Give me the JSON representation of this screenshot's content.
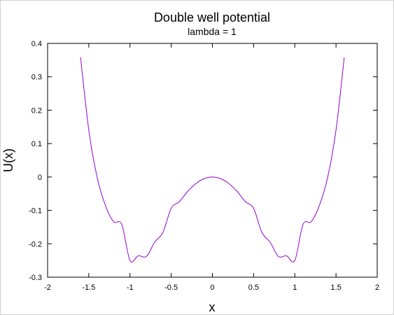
{
  "chart_data": {
    "type": "line",
    "title": "Double well potential",
    "subtitle": "lambda = 1",
    "xlabel": "x",
    "ylabel": "U(x)",
    "xlim": [
      -2,
      2
    ],
    "ylim": [
      -0.3,
      0.4
    ],
    "x_ticks": [
      -2,
      -1.5,
      -1,
      -0.5,
      0,
      0.5,
      1,
      1.5,
      2
    ],
    "x_tick_labels": [
      "-2",
      "-1.5",
      "-1",
      "-0.5",
      "0",
      "0.5",
      "1",
      "1.5",
      "2"
    ],
    "y_ticks": [
      -0.3,
      -0.2,
      -0.1,
      0,
      0.1,
      0.2,
      0.3,
      0.4
    ],
    "y_tick_labels": [
      "-0.3",
      "-0.2",
      "-0.1",
      "0",
      "0.1",
      "0.2",
      "0.3",
      "0.4"
    ],
    "grid": false,
    "series": [
      {
        "color": "#9400d3",
        "x": [
          -1.6,
          -1.5,
          -1.4,
          -1.3,
          -1.2,
          -1.1,
          -1.0,
          -0.9,
          -0.8,
          -0.7,
          -0.6,
          -0.5,
          -0.4,
          -0.3,
          -0.2,
          -0.1,
          0.0,
          0.1,
          0.2,
          0.3,
          0.4,
          0.5,
          0.6,
          0.7,
          0.8,
          0.9,
          1.0,
          1.1,
          1.2,
          1.3,
          1.4,
          1.5,
          1.6
        ],
        "y": [
          0.3584,
          0.1406,
          0.0004,
          -0.084,
          -0.1336,
          -0.142,
          -0.25,
          -0.236,
          -0.2376,
          -0.195,
          -0.1656,
          -0.0938,
          -0.0736,
          -0.043,
          -0.0196,
          -0.005,
          0.0,
          -0.005,
          -0.0196,
          -0.043,
          -0.0736,
          -0.0938,
          -0.1656,
          -0.195,
          -0.2376,
          -0.236,
          -0.25,
          -0.142,
          -0.1336,
          -0.084,
          0.0004,
          0.1406,
          0.3584
        ]
      }
    ]
  }
}
